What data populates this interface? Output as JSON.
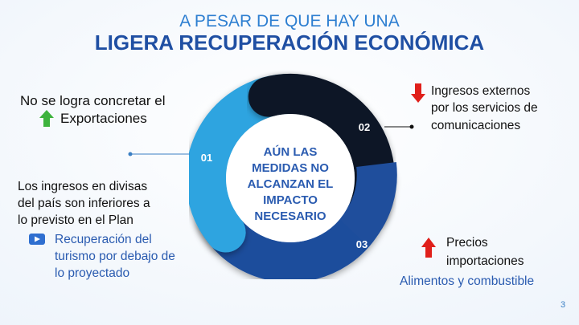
{
  "title": {
    "line1": "A PESAR DE QUE HAY UNA",
    "line2": "LIGERA RECUPERACIÓN ECONÓMICA"
  },
  "center": {
    "lines": [
      "AÚN LAS",
      "MEDIDAS NO",
      "ALCANZAN EL",
      "IMPACTO",
      "NECESARIO"
    ]
  },
  "segments": [
    "01",
    "02",
    "03"
  ],
  "left": {
    "top": {
      "line1": "No se logra concretar el",
      "line2": "Exportaciones"
    },
    "middle": [
      "Los ingresos en divisas",
      "del país son inferiores a",
      "lo previsto en el Plan"
    ],
    "bottom": [
      "Recuperación del",
      "turismo por debajo de",
      "lo proyectado"
    ]
  },
  "right": {
    "top": [
      "Ingresos externos",
      "por los servicios de",
      "comunicaciones"
    ],
    "bottom": [
      "Precios",
      "importaciones"
    ],
    "bottom_note": "Alimentos y combustible"
  },
  "page_number": "3"
}
